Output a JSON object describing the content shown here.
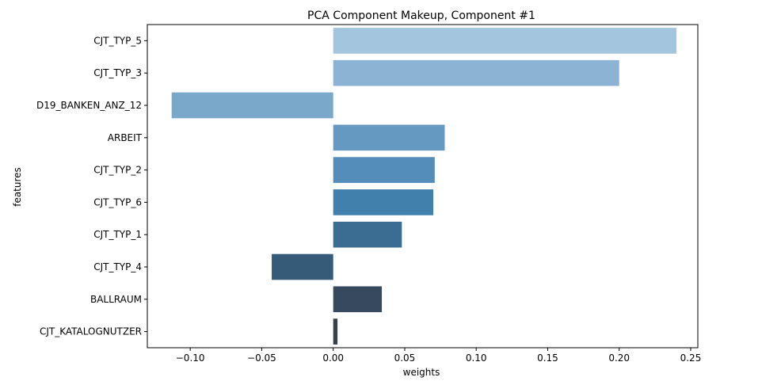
{
  "chart_data": {
    "type": "bar",
    "orientation": "horizontal",
    "title": "PCA Component Makeup, Component #1",
    "xlabel": "weights",
    "ylabel": "features",
    "categories": [
      "CJT_TYP_5",
      "CJT_TYP_3",
      "D19_BANKEN_ANZ_12",
      "ARBEIT",
      "CJT_TYP_2",
      "CJT_TYP_6",
      "CJT_TYP_1",
      "CJT_TYP_4",
      "BALLRAUM",
      "CJT_KATALOGNUTZER"
    ],
    "values": [
      0.24,
      0.2,
      -0.113,
      0.078,
      0.071,
      0.07,
      0.048,
      -0.043,
      0.034,
      0.003
    ],
    "colors": [
      "#a3c5de",
      "#8cb3d4",
      "#7aa8cb",
      "#6599c2",
      "#548cba",
      "#4180ac",
      "#3b6d93",
      "#365b78",
      "#37495e",
      "#3a3f4c"
    ],
    "xlim": [
      -0.13,
      0.255
    ],
    "xticks": [
      -0.1,
      -0.05,
      0.0,
      0.05,
      0.1,
      0.15,
      0.2,
      0.25
    ],
    "xtick_labels": [
      "−0.10",
      "−0.05",
      "0.00",
      "0.05",
      "0.10",
      "0.15",
      "0.20",
      "0.25"
    ],
    "grid": false,
    "legend": "none"
  }
}
